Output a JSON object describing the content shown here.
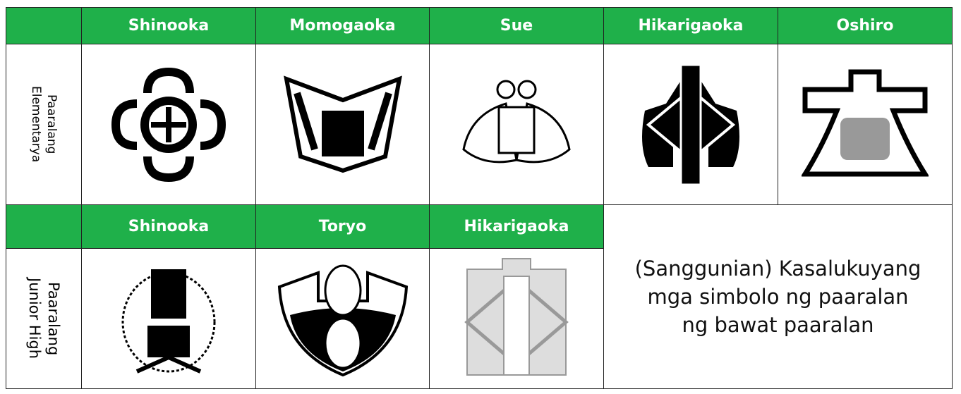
{
  "table": {
    "rows": [
      {
        "label_lines": [
          "Paaralang",
          "Elementarya"
        ],
        "schools": [
          "Shinooka",
          "Momogaoka",
          "Sue",
          "Hikarigaoka",
          "Oshiro"
        ]
      },
      {
        "label_lines": [
          "Paaralang",
          "Junior High"
        ],
        "schools": [
          "Shinooka",
          "Toryo",
          "Hikarigaoka"
        ]
      }
    ],
    "note_lines": [
      "(Sanggunian) Kasalukuyang",
      "mga simbolo ng paaralan",
      "ng bawat paaralan"
    ]
  }
}
